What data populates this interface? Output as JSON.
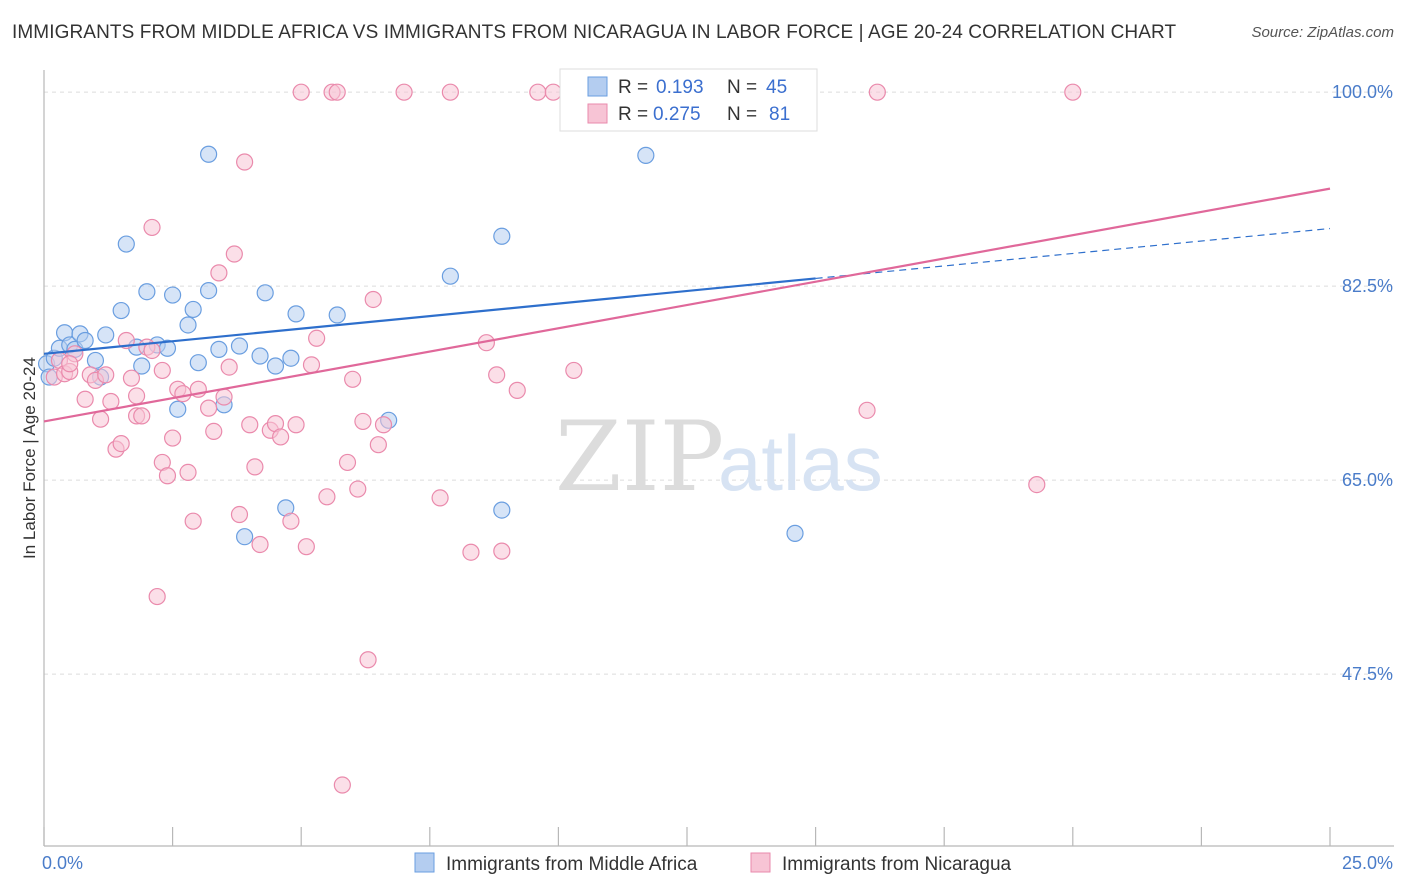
{
  "header": {
    "title": "IMMIGRANTS FROM MIDDLE AFRICA VS IMMIGRANTS FROM NICARAGUA IN LABOR FORCE | AGE 20-24 CORRELATION CHART",
    "source": "Source: ZipAtlas.com"
  },
  "watermark": {
    "zip": "ZIP",
    "atlas": "atlas"
  },
  "legend": {
    "r_label": "R =",
    "n_label": "N =",
    "rows": [
      {
        "r": "0.193",
        "n": "45",
        "color": "#a9c6ef"
      },
      {
        "r": "0.275",
        "n": "81",
        "color": "#f5b3c8"
      }
    ]
  },
  "chart_data": {
    "type": "scatter",
    "ylabel": "In Labor Force | Age 20-24",
    "xlim": [
      0,
      25
    ],
    "ylim": [
      32,
      102
    ],
    "x_tick_labels": [
      "0.0%",
      "25.0%"
    ],
    "y_ticks": [
      47.5,
      65.0,
      82.5,
      100.0
    ],
    "y_tick_labels": [
      "47.5%",
      "65.0%",
      "82.5%",
      "100.0%"
    ],
    "grid": "horizontal-dashed",
    "series": [
      {
        "name": "Immigrants from Middle Africa",
        "color": "#6a9ee0",
        "fill": "#b4cdf0",
        "trend": {
          "x0": 0,
          "y0": 76.4,
          "x1": 15,
          "y1": 83.2,
          "dashed_to_x": 25,
          "dashed_to_y": 87.7,
          "color": "#2e6fcc"
        },
        "points": [
          [
            0.05,
            75.5
          ],
          [
            0.1,
            74.3
          ],
          [
            0.2,
            76.0
          ],
          [
            0.3,
            76.9
          ],
          [
            0.4,
            78.3
          ],
          [
            0.5,
            77.2
          ],
          [
            0.6,
            76.8
          ],
          [
            0.7,
            78.2
          ],
          [
            0.8,
            77.6
          ],
          [
            1.0,
            75.8
          ],
          [
            1.1,
            74.3
          ],
          [
            1.2,
            78.1
          ],
          [
            1.5,
            80.3
          ],
          [
            1.6,
            86.3
          ],
          [
            1.8,
            77.0
          ],
          [
            1.9,
            75.3
          ],
          [
            2.0,
            82.0
          ],
          [
            2.2,
            77.2
          ],
          [
            2.4,
            76.9
          ],
          [
            2.5,
            81.7
          ],
          [
            2.6,
            71.4
          ],
          [
            2.8,
            79.0
          ],
          [
            2.9,
            80.4
          ],
          [
            3.0,
            75.6
          ],
          [
            3.2,
            82.1
          ],
          [
            3.2,
            94.4
          ],
          [
            3.4,
            76.8
          ],
          [
            3.5,
            71.8
          ],
          [
            3.8,
            77.1
          ],
          [
            3.9,
            59.9
          ],
          [
            4.2,
            76.2
          ],
          [
            4.3,
            81.9
          ],
          [
            4.5,
            75.3
          ],
          [
            4.7,
            62.5
          ],
          [
            4.8,
            76.0
          ],
          [
            4.9,
            80.0
          ],
          [
            5.7,
            79.9
          ],
          [
            6.7,
            70.4
          ],
          [
            7.9,
            83.4
          ],
          [
            8.9,
            87.0
          ],
          [
            8.9,
            62.3
          ],
          [
            10.9,
            100.0
          ],
          [
            11.7,
            94.3
          ],
          [
            12.5,
            99.5
          ],
          [
            14.6,
            60.2
          ]
        ]
      },
      {
        "name": "Immigrants from Nicaragua",
        "color": "#ea8aac",
        "fill": "#f7c4d5",
        "trend": {
          "x0": 0,
          "y0": 70.3,
          "x1": 25,
          "y1": 91.3,
          "color": "#e0689a"
        },
        "points": [
          [
            0.2,
            74.3
          ],
          [
            0.3,
            75.8
          ],
          [
            0.4,
            74.6
          ],
          [
            0.5,
            74.8
          ],
          [
            0.6,
            76.4
          ],
          [
            0.8,
            72.3
          ],
          [
            0.9,
            74.5
          ],
          [
            1.0,
            74.0
          ],
          [
            1.1,
            70.5
          ],
          [
            1.2,
            74.5
          ],
          [
            1.3,
            72.1
          ],
          [
            1.4,
            67.8
          ],
          [
            1.5,
            68.3
          ],
          [
            1.6,
            77.6
          ],
          [
            1.7,
            74.2
          ],
          [
            1.8,
            70.8
          ],
          [
            1.8,
            72.6
          ],
          [
            1.9,
            70.8
          ],
          [
            2.0,
            77.0
          ],
          [
            2.1,
            76.7
          ],
          [
            2.1,
            87.8
          ],
          [
            2.2,
            54.5
          ],
          [
            2.3,
            74.9
          ],
          [
            2.3,
            66.6
          ],
          [
            2.4,
            65.4
          ],
          [
            2.5,
            68.8
          ],
          [
            2.6,
            73.2
          ],
          [
            2.7,
            72.8
          ],
          [
            2.8,
            65.7
          ],
          [
            2.9,
            61.3
          ],
          [
            3.0,
            73.2
          ],
          [
            3.2,
            71.5
          ],
          [
            3.3,
            69.4
          ],
          [
            3.4,
            83.7
          ],
          [
            3.5,
            72.5
          ],
          [
            3.6,
            75.2
          ],
          [
            3.7,
            85.4
          ],
          [
            3.8,
            61.9
          ],
          [
            3.9,
            93.7
          ],
          [
            4.0,
            70.0
          ],
          [
            4.1,
            66.2
          ],
          [
            4.2,
            59.2
          ],
          [
            4.4,
            69.5
          ],
          [
            4.5,
            70.1
          ],
          [
            4.6,
            68.9
          ],
          [
            4.8,
            61.3
          ],
          [
            4.9,
            70.0
          ],
          [
            5.0,
            100.0
          ],
          [
            5.1,
            59.0
          ],
          [
            5.2,
            75.4
          ],
          [
            5.3,
            77.8
          ],
          [
            5.5,
            63.5
          ],
          [
            5.6,
            100.0
          ],
          [
            5.7,
            100.0
          ],
          [
            5.9,
            66.6
          ],
          [
            6.0,
            74.1
          ],
          [
            6.1,
            64.2
          ],
          [
            6.2,
            70.3
          ],
          [
            6.3,
            48.8
          ],
          [
            6.4,
            81.3
          ],
          [
            6.5,
            68.2
          ],
          [
            6.6,
            70.0
          ],
          [
            7.0,
            100.0
          ],
          [
            7.7,
            63.4
          ],
          [
            7.9,
            100.0
          ],
          [
            8.3,
            58.5
          ],
          [
            8.6,
            77.4
          ],
          [
            8.8,
            74.5
          ],
          [
            8.9,
            58.6
          ],
          [
            9.2,
            73.1
          ],
          [
            9.6,
            100.0
          ],
          [
            9.9,
            100.0
          ],
          [
            10.3,
            74.9
          ],
          [
            12.4,
            100.0
          ],
          [
            14.8,
            100.0
          ],
          [
            16.0,
            71.3
          ],
          [
            16.2,
            100.0
          ],
          [
            19.3,
            64.6
          ],
          [
            20.0,
            100.0
          ],
          [
            5.8,
            37.5
          ],
          [
            0.5,
            75.5
          ]
        ]
      }
    ]
  }
}
